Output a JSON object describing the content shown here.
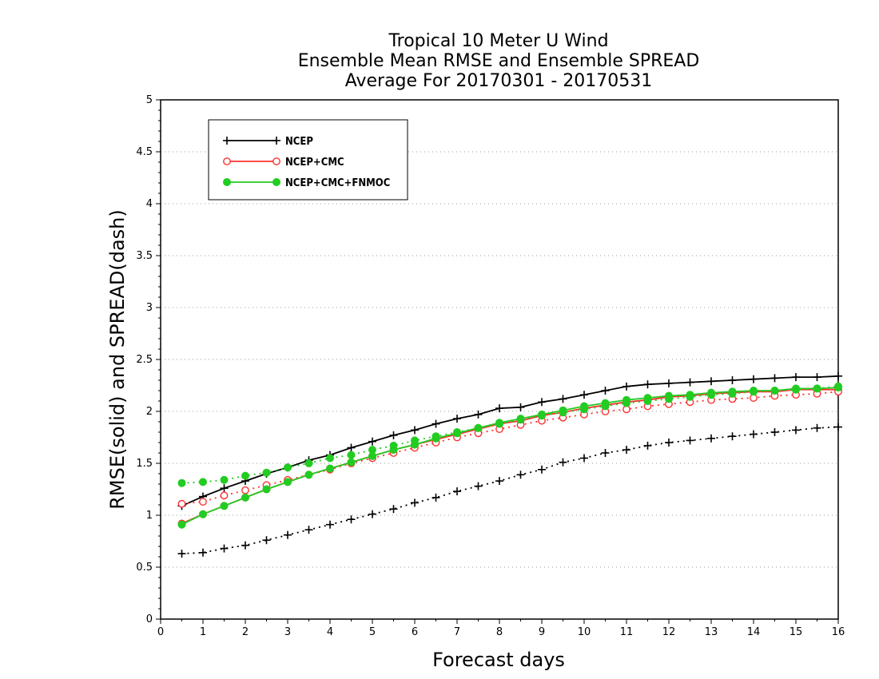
{
  "chart_data": {
    "type": "line",
    "title": [
      "Tropical 10 Meter U Wind",
      "Ensemble Mean RMSE and Ensemble SPREAD",
      "Average For 20170301 - 20170531"
    ],
    "xlabel": "Forecast days",
    "ylabel": "RMSE(solid) and SPREAD(dash)",
    "xlim": [
      0,
      16
    ],
    "ylim": [
      0,
      5
    ],
    "xticks": [
      "0",
      "1",
      "2",
      "3",
      "4",
      "5",
      "6",
      "7",
      "8",
      "9",
      "10",
      "11",
      "12",
      "13",
      "14",
      "15",
      "16"
    ],
    "yticks": [
      "0",
      "0.5",
      "1",
      "1.5",
      "2",
      "2.5",
      "3",
      "3.5",
      "4",
      "4.5",
      "5"
    ],
    "grid": "horizontal-dotted",
    "legend_position": "top-left",
    "x": [
      0.5,
      1,
      1.5,
      2,
      2.5,
      3,
      3.5,
      4,
      4.5,
      5,
      5.5,
      6,
      6.5,
      7,
      7.5,
      8,
      8.5,
      9,
      9.5,
      10,
      10.5,
      11,
      11.5,
      12,
      12.5,
      13,
      13.5,
      14,
      14.5,
      15,
      15.5,
      16
    ],
    "series": [
      {
        "name": "NCEP",
        "color": "#000000",
        "marker": "plus",
        "rmse": [
          1.09,
          1.18,
          1.26,
          1.33,
          1.4,
          1.46,
          1.53,
          1.58,
          1.65,
          1.71,
          1.77,
          1.82,
          1.88,
          1.93,
          1.97,
          2.03,
          2.04,
          2.09,
          2.12,
          2.16,
          2.2,
          2.24,
          2.26,
          2.27,
          2.28,
          2.29,
          2.3,
          2.31,
          2.32,
          2.33,
          2.33,
          2.34
        ],
        "spread": [
          0.63,
          0.64,
          0.68,
          0.71,
          0.76,
          0.81,
          0.86,
          0.91,
          0.96,
          1.01,
          1.06,
          1.12,
          1.17,
          1.23,
          1.28,
          1.33,
          1.39,
          1.44,
          1.51,
          1.55,
          1.6,
          1.63,
          1.67,
          1.7,
          1.72,
          1.74,
          1.76,
          1.78,
          1.8,
          1.82,
          1.84,
          1.85
        ]
      },
      {
        "name": "NCEP+CMC",
        "color": "#ff3030",
        "marker": "open-circle",
        "rmse": [
          0.92,
          1.01,
          1.09,
          1.17,
          1.25,
          1.32,
          1.39,
          1.45,
          1.51,
          1.57,
          1.63,
          1.68,
          1.73,
          1.78,
          1.83,
          1.88,
          1.91,
          1.96,
          1.99,
          2.03,
          2.06,
          2.09,
          2.11,
          2.14,
          2.15,
          2.17,
          2.18,
          2.19,
          2.19,
          2.21,
          2.21,
          2.21
        ],
        "spread": [
          1.11,
          1.13,
          1.19,
          1.24,
          1.29,
          1.34,
          1.39,
          1.44,
          1.5,
          1.55,
          1.6,
          1.65,
          1.7,
          1.75,
          1.79,
          1.83,
          1.87,
          1.91,
          1.94,
          1.97,
          2.0,
          2.02,
          2.05,
          2.07,
          2.09,
          2.11,
          2.12,
          2.13,
          2.15,
          2.16,
          2.17,
          2.19
        ]
      },
      {
        "name": "NCEP+CMC+FNMOC",
        "color": "#22cc22",
        "marker": "filled-circle",
        "rmse": [
          0.91,
          1.01,
          1.09,
          1.17,
          1.25,
          1.32,
          1.39,
          1.45,
          1.51,
          1.57,
          1.63,
          1.68,
          1.74,
          1.79,
          1.84,
          1.89,
          1.93,
          1.97,
          2.01,
          2.05,
          2.08,
          2.11,
          2.13,
          2.15,
          2.16,
          2.18,
          2.19,
          2.2,
          2.2,
          2.22,
          2.22,
          2.23
        ],
        "spread": [
          1.31,
          1.32,
          1.34,
          1.38,
          1.41,
          1.46,
          1.5,
          1.55,
          1.58,
          1.63,
          1.67,
          1.72,
          1.76,
          1.8,
          1.84,
          1.88,
          1.92,
          1.96,
          1.99,
          2.02,
          2.05,
          2.08,
          2.1,
          2.12,
          2.14,
          2.16,
          2.17,
          2.19,
          2.2,
          2.21,
          2.22,
          2.24
        ]
      }
    ]
  }
}
